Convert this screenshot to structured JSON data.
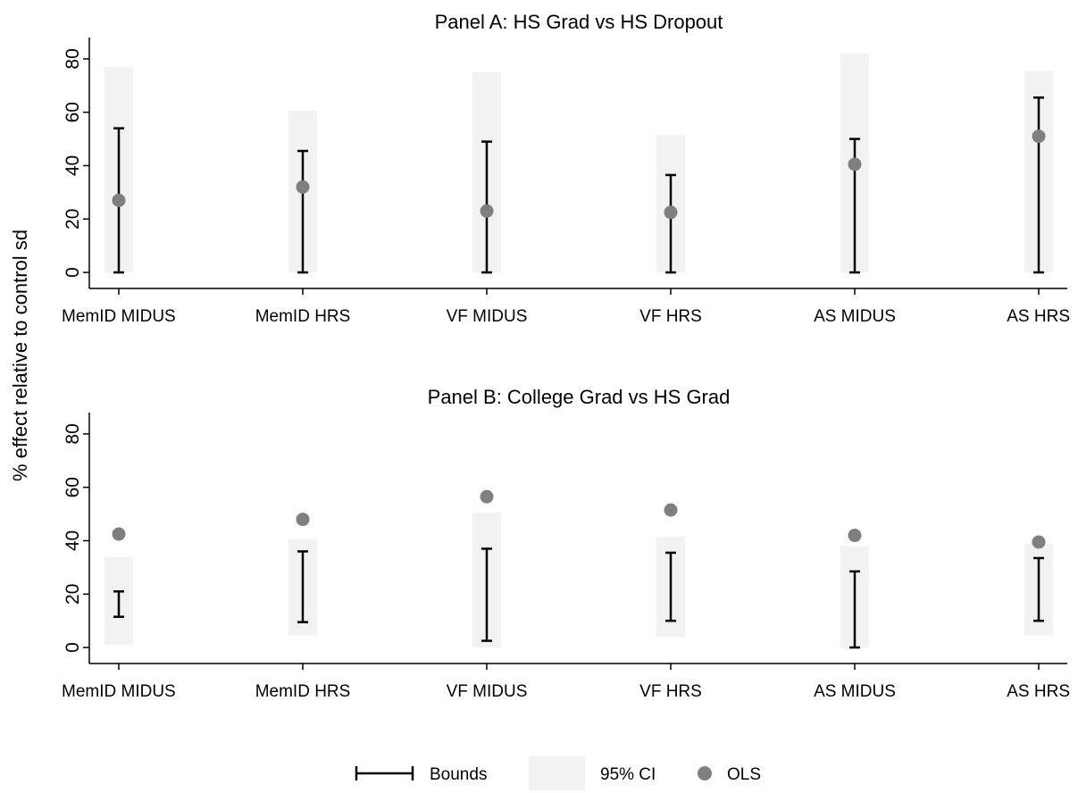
{
  "figure": {
    "ylabel": "% effect relative to control sd",
    "legend": {
      "bounds": "Bounds",
      "ci": "95% CI",
      "ols": "OLS"
    },
    "colors": {
      "ci_fill": "#f2f2f2",
      "ols_point": "#7f7f7f",
      "bounds": "#000000"
    }
  },
  "chart_data": [
    {
      "type": "range-plot",
      "title": "Panel A: HS Grad vs HS Dropout",
      "categories": [
        "MemID MIDUS",
        "MemID HRS",
        "VF MIDUS",
        "VF HRS",
        "AS MIDUS",
        "AS HRS"
      ],
      "yticks": [
        0,
        20,
        40,
        60,
        80
      ],
      "ylim": [
        -6,
        87
      ],
      "bounds": [
        [
          0,
          54
        ],
        [
          0,
          45.5
        ],
        [
          0,
          49
        ],
        [
          0,
          36.5
        ],
        [
          0,
          50
        ],
        [
          0,
          65.5
        ]
      ],
      "ci": [
        [
          0,
          77
        ],
        [
          0,
          60.5
        ],
        [
          0,
          75
        ],
        [
          0,
          51.5
        ],
        [
          0,
          82
        ],
        [
          0,
          75.5
        ]
      ],
      "ols": [
        27,
        32,
        23,
        22.5,
        40.5,
        51
      ]
    },
    {
      "type": "range-plot",
      "title": "Panel B: College Grad vs HS Grad",
      "categories": [
        "MemID MIDUS",
        "MemID HRS",
        "VF MIDUS",
        "VF HRS",
        "AS MIDUS",
        "AS HRS"
      ],
      "yticks": [
        0,
        20,
        40,
        60,
        80
      ],
      "ylim": [
        -6,
        87
      ],
      "bounds": [
        [
          11.5,
          21
        ],
        [
          9.5,
          36
        ],
        [
          2.5,
          37
        ],
        [
          10,
          35.5
        ],
        [
          0,
          28.5
        ],
        [
          10,
          33.5
        ]
      ],
      "ci": [
        [
          1,
          34
        ],
        [
          4.5,
          40.5
        ],
        [
          0,
          50.5
        ],
        [
          4,
          41.5
        ],
        [
          0,
          38
        ],
        [
          4.5,
          39
        ]
      ],
      "ols": [
        42.5,
        48,
        56.5,
        51.5,
        42,
        39.5
      ]
    }
  ]
}
